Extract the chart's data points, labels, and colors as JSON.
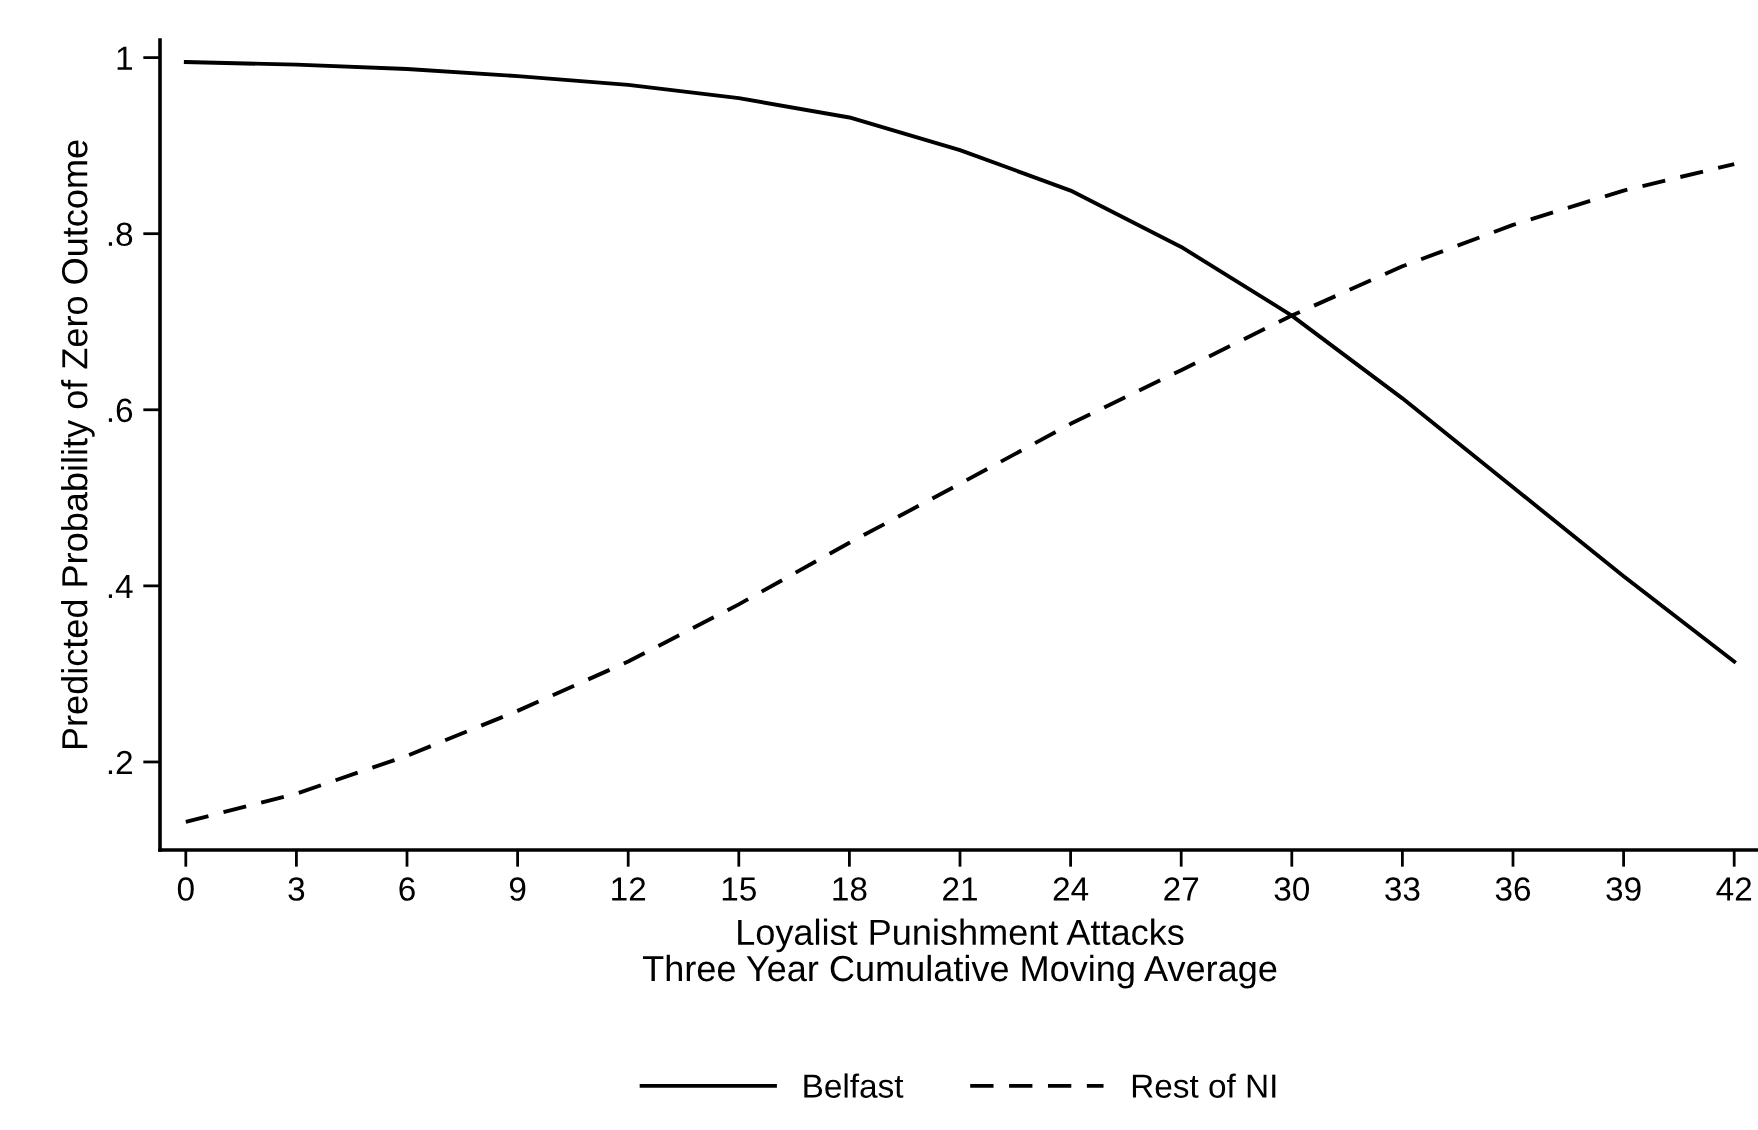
{
  "chart_data": {
    "type": "line",
    "xlabel": "Loyalist Punishment Attacks\nThree Year Cumulative Moving Average",
    "ylabel": "Predicted Probability of Zero Outcome",
    "x": [
      0,
      3,
      6,
      9,
      12,
      15,
      18,
      21,
      24,
      27,
      30,
      33,
      36,
      39,
      42
    ],
    "series": [
      {
        "name": "Belfast",
        "color": "#000000",
        "line_style": "solid",
        "values": [
          0.995,
          0.992,
          0.987,
          0.979,
          0.969,
          0.954,
          0.932,
          0.895,
          0.849,
          0.785,
          0.707,
          0.613,
          0.512,
          0.411,
          0.314
        ]
      },
      {
        "name": "Rest of NI",
        "color": "#000000",
        "line_style": "dashed",
        "values": [
          0.132,
          0.164,
          0.207,
          0.258,
          0.314,
          0.379,
          0.449,
          0.516,
          0.584,
          0.645,
          0.707,
          0.763,
          0.81,
          0.849,
          0.879
        ]
      }
    ],
    "xlim": [
      -0.7,
      42.7
    ],
    "xticks": [
      0,
      3,
      6,
      9,
      12,
      15,
      18,
      21,
      24,
      27,
      30,
      33,
      36,
      39,
      42
    ],
    "ylim": [
      0.1,
      1.02
    ],
    "yticks": [
      {
        "value": 0.2,
        "label": ".2"
      },
      {
        "value": 0.4,
        "label": ".4"
      },
      {
        "value": 0.6,
        "label": ".6"
      },
      {
        "value": 0.8,
        "label": ".8"
      },
      {
        "value": 1,
        "label": "1"
      }
    ],
    "grid": false,
    "legend": "bottom",
    "marker": "none"
  }
}
